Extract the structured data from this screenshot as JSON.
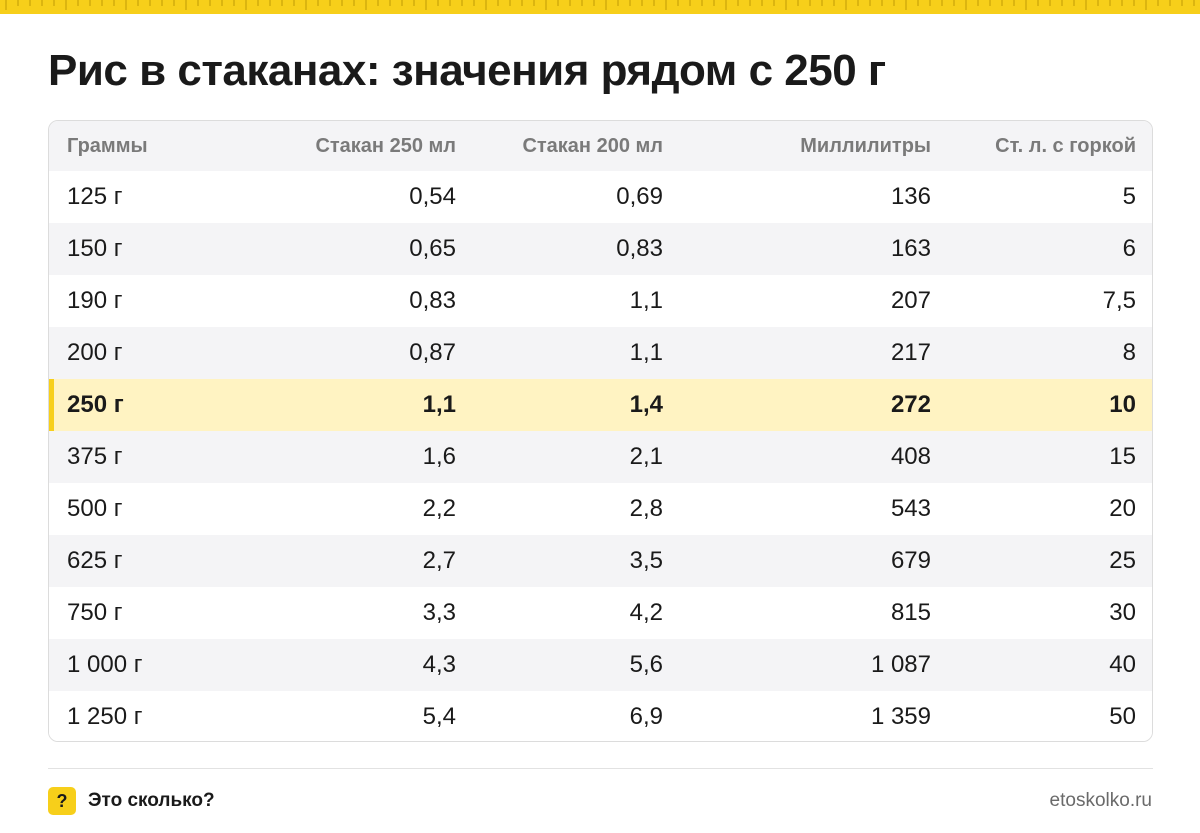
{
  "title": "Рис в стаканах: значения рядом с 250 г",
  "colors": {
    "accent": "#f7cf1a",
    "highlight_row": "#fff3c2",
    "zebra": "#f4f4f6",
    "header_text": "#7a7a7a"
  },
  "table": {
    "headers": [
      "Граммы",
      "Стакан 250 мл",
      "Стакан 200 мл",
      "Миллилитры",
      "Ст. л. с горкой"
    ],
    "highlight_index": 4,
    "rows": [
      [
        "125 г",
        "0,54",
        "0,69",
        "136",
        "5"
      ],
      [
        "150 г",
        "0,65",
        "0,83",
        "163",
        "6"
      ],
      [
        "190 г",
        "0,83",
        "1,1",
        "207",
        "7,5"
      ],
      [
        "200 г",
        "0,87",
        "1,1",
        "217",
        "8"
      ],
      [
        "250 г",
        "1,1",
        "1,4",
        "272",
        "10"
      ],
      [
        "375 г",
        "1,6",
        "2,1",
        "408",
        "15"
      ],
      [
        "500 г",
        "2,2",
        "2,8",
        "543",
        "20"
      ],
      [
        "625 г",
        "2,7",
        "3,5",
        "679",
        "25"
      ],
      [
        "750 г",
        "3,3",
        "4,2",
        "815",
        "30"
      ],
      [
        "1 000 г",
        "4,3",
        "5,6",
        "1 087",
        "40"
      ],
      [
        "1 250 г",
        "5,4",
        "6,9",
        "1 359",
        "50"
      ]
    ]
  },
  "footer": {
    "badge": "?",
    "brand": "Это сколько?",
    "site": "etoskolko.ru"
  }
}
